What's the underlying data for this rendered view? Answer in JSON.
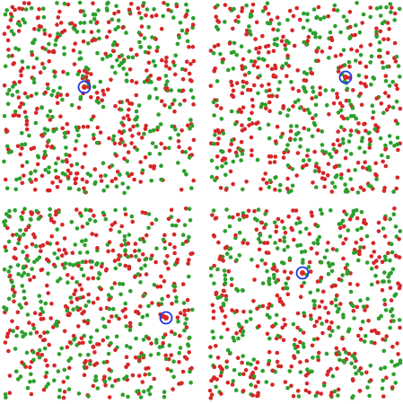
{
  "colors": {
    "background": "#ffffff",
    "dot_red": "#d62728",
    "dot_green": "#2ca02c",
    "cursor_ring": "#1f35e6"
  },
  "icons": {
    "cursor": "blue-ring-target-icon"
  },
  "panels": [
    {
      "id": "top-left"
    },
    {
      "id": "top-right"
    },
    {
      "id": "bottom-left"
    },
    {
      "id": "bottom-right"
    }
  ]
}
